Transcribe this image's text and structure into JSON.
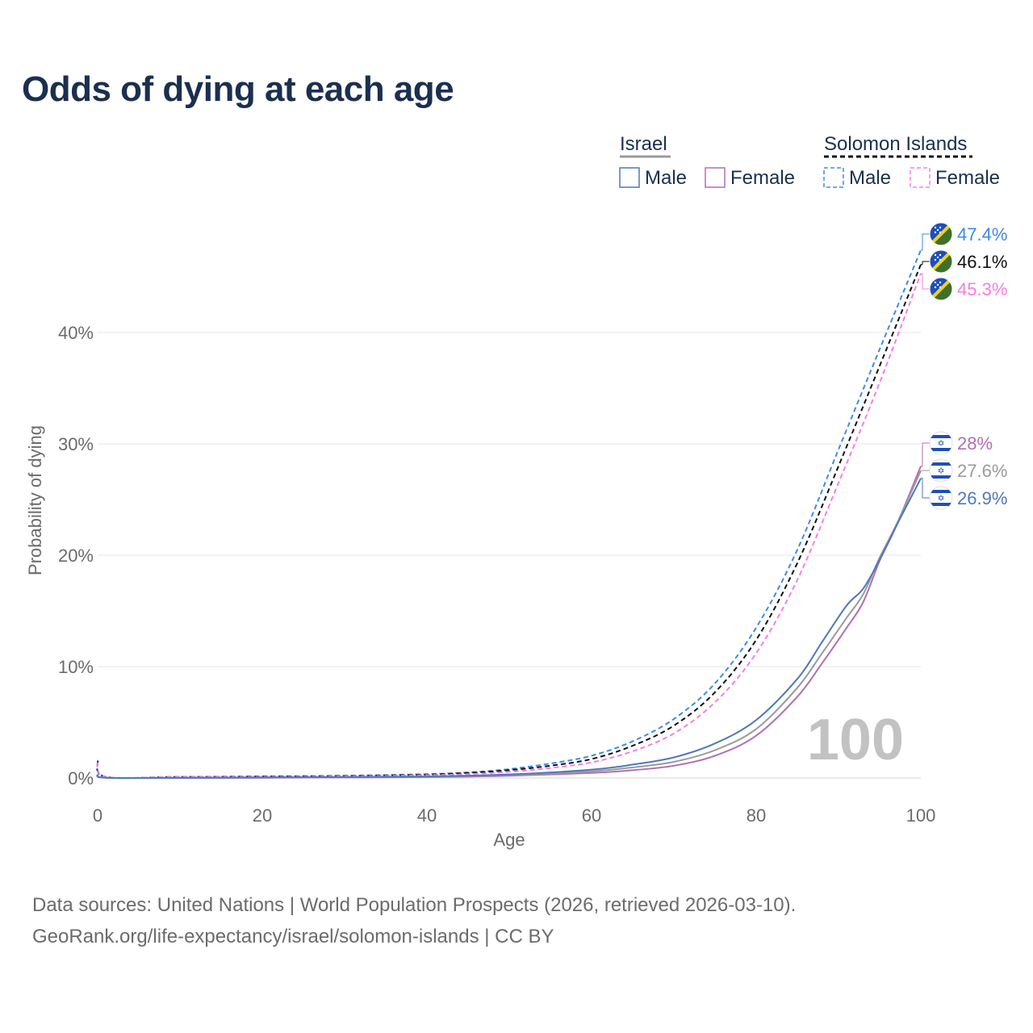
{
  "title": "Odds of dying at each age",
  "legend": {
    "groups": [
      {
        "name": "Israel",
        "line_color": "#9a9a9a",
        "dashed": false,
        "items": [
          {
            "label": "Male",
            "color": "#4e79b9"
          },
          {
            "label": "Female",
            "color": "#b06fb4"
          }
        ]
      },
      {
        "name": "Solomon Islands",
        "line_color": "#111111",
        "dashed": true,
        "items": [
          {
            "label": "Male",
            "color": "#3f8ae6"
          },
          {
            "label": "Female",
            "color": "#f57ee6"
          }
        ]
      }
    ]
  },
  "chart_data": {
    "type": "line",
    "title": "Odds of dying at each age",
    "xlabel": "Age",
    "ylabel": "Probability of dying",
    "xlim": [
      0,
      100
    ],
    "ylim": [
      0,
      50
    ],
    "xticks": [
      0,
      20,
      40,
      60,
      80,
      100
    ],
    "xtick_labels": [
      "0",
      "20",
      "40",
      "60",
      "80",
      "100"
    ],
    "yticks": [
      0,
      10,
      20,
      30,
      40
    ],
    "ytick_labels": [
      "0%",
      "10%",
      "20%",
      "30%",
      "40%"
    ],
    "grid": true,
    "watermark": "100",
    "series": [
      {
        "name": "Solomon Islands Male",
        "country": "Solomon Islands",
        "color": "#3f8ae6",
        "dashed": true,
        "end_label": "47.4%",
        "end_value": 47.4,
        "x": [
          0,
          1,
          10,
          20,
          30,
          40,
          45,
          50,
          55,
          60,
          65,
          70,
          75,
          80,
          85,
          90,
          95,
          100
        ],
        "y": [
          1.6,
          0.1,
          0.1,
          0.15,
          0.2,
          0.35,
          0.5,
          0.8,
          1.3,
          2.0,
          3.3,
          5.3,
          8.5,
          13.5,
          20.5,
          29.5,
          38.5,
          47.4
        ]
      },
      {
        "name": "Solomon Islands Total",
        "country": "Solomon Islands",
        "color": "#111111",
        "dashed": true,
        "end_label": "46.1%",
        "end_value": 46.1,
        "x": [
          0,
          1,
          10,
          20,
          30,
          40,
          45,
          50,
          55,
          60,
          65,
          70,
          75,
          80,
          85,
          90,
          95,
          100
        ],
        "y": [
          1.5,
          0.1,
          0.1,
          0.13,
          0.18,
          0.3,
          0.45,
          0.7,
          1.1,
          1.7,
          2.9,
          4.7,
          7.7,
          12.4,
          19.3,
          28.0,
          37.0,
          46.1
        ]
      },
      {
        "name": "Solomon Islands Female",
        "country": "Solomon Islands",
        "color": "#f57ee6",
        "dashed": true,
        "end_label": "45.3%",
        "end_value": 45.3,
        "x": [
          0,
          1,
          10,
          20,
          30,
          40,
          45,
          50,
          55,
          60,
          65,
          70,
          75,
          80,
          85,
          90,
          95,
          100
        ],
        "y": [
          1.4,
          0.1,
          0.1,
          0.1,
          0.15,
          0.25,
          0.35,
          0.55,
          0.9,
          1.4,
          2.4,
          4.0,
          6.8,
          11.2,
          17.8,
          26.5,
          35.5,
          45.3
        ]
      },
      {
        "name": "Israel Female",
        "country": "Israel",
        "color": "#b06fb4",
        "dashed": false,
        "end_label": "28%",
        "end_value": 28.0,
        "x": [
          0,
          1,
          10,
          20,
          30,
          40,
          50,
          60,
          65,
          70,
          75,
          80,
          85,
          88,
          91,
          93,
          95,
          97,
          100
        ],
        "y": [
          0.3,
          0.02,
          0.01,
          0.02,
          0.04,
          0.08,
          0.2,
          0.45,
          0.7,
          1.1,
          2.0,
          3.8,
          7.3,
          10.3,
          13.5,
          15.8,
          19.5,
          22.6,
          28.0
        ]
      },
      {
        "name": "Israel Total",
        "country": "Israel",
        "color": "#9a9a9a",
        "dashed": false,
        "end_label": "27.6%",
        "end_value": 27.6,
        "x": [
          0,
          1,
          10,
          20,
          30,
          40,
          50,
          60,
          65,
          70,
          75,
          80,
          85,
          88,
          91,
          93,
          95,
          97,
          100
        ],
        "y": [
          0.32,
          0.02,
          0.01,
          0.03,
          0.06,
          0.11,
          0.26,
          0.6,
          0.95,
          1.45,
          2.5,
          4.4,
          8.1,
          11.2,
          14.4,
          16.5,
          19.8,
          22.7,
          27.6
        ]
      },
      {
        "name": "Israel Male",
        "country": "Israel",
        "color": "#4e79b9",
        "dashed": false,
        "end_label": "26.9%",
        "end_value": 26.9,
        "x": [
          0,
          1,
          10,
          20,
          30,
          40,
          50,
          60,
          65,
          70,
          75,
          80,
          85,
          88,
          91,
          93,
          95,
          97,
          100
        ],
        "y": [
          0.35,
          0.02,
          0.01,
          0.04,
          0.08,
          0.14,
          0.32,
          0.75,
          1.2,
          1.85,
          3.1,
          5.2,
          8.9,
          12.2,
          15.5,
          17.0,
          19.6,
          22.6,
          26.9
        ]
      }
    ]
  },
  "footer": {
    "sources": "Data sources: United Nations | World Population Prospects (2026, retrieved 2026-03-10).",
    "link": "GeoRank.org/life-expectancy/israel/solomon-islands | CC BY"
  }
}
